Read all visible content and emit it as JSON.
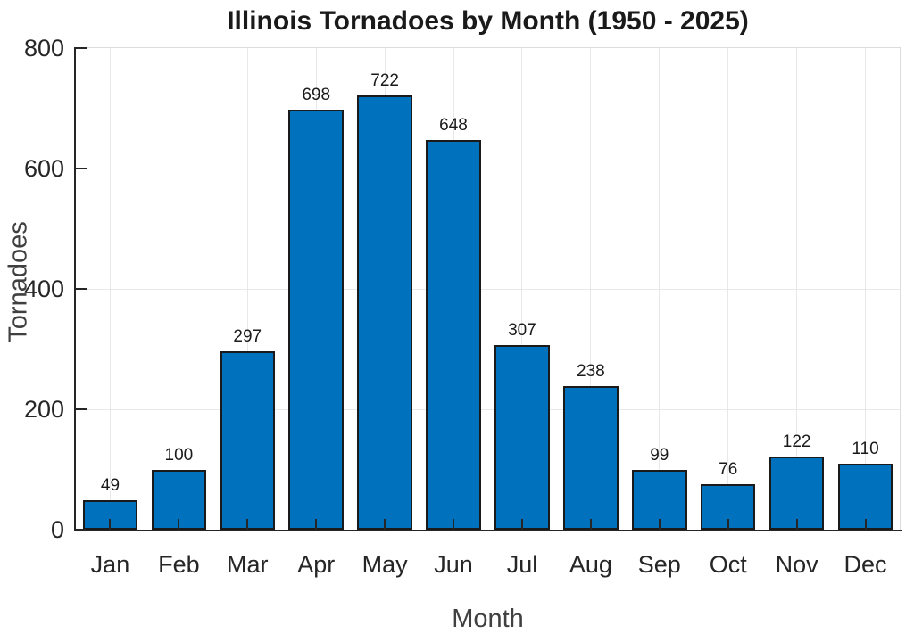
{
  "chart_data": {
    "type": "bar",
    "title": "Illinois Tornadoes by Month (1950 - 2025)",
    "xlabel": "Month",
    "ylabel": "Tornadoes",
    "categories": [
      "Jan",
      "Feb",
      "Mar",
      "Apr",
      "May",
      "Jun",
      "Jul",
      "Aug",
      "Sep",
      "Oct",
      "Nov",
      "Dec"
    ],
    "values": [
      49,
      100,
      297,
      698,
      722,
      648,
      307,
      238,
      99,
      76,
      122,
      110
    ],
    "ylim": [
      0,
      800
    ],
    "yticks": [
      0,
      200,
      400,
      600,
      800
    ],
    "grid": "on",
    "legend": "none",
    "bar_width_fraction": 0.8,
    "colors": {
      "bar_fill": "#0072BD",
      "bar_edge": "#1a1a1a",
      "axis": "#262626",
      "grid": "#e8e8e8",
      "box_light": "#dcdcdc",
      "background": "#ffffff"
    }
  }
}
